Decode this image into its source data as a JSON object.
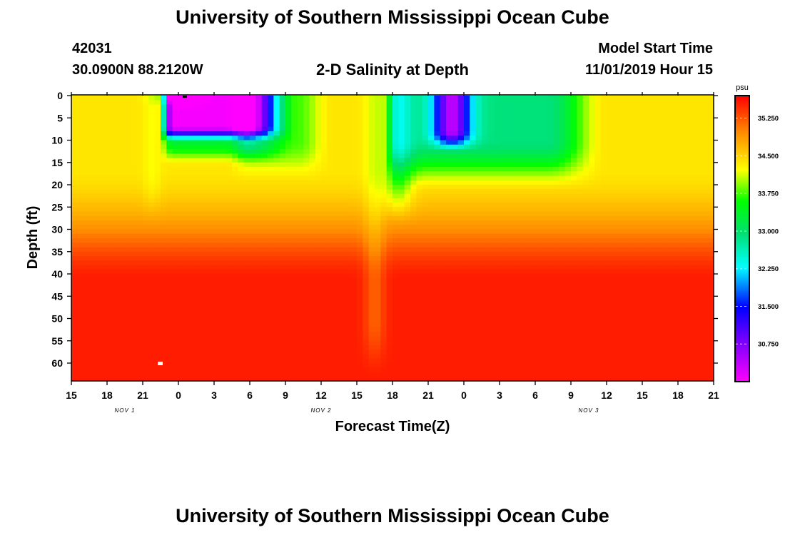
{
  "header": {
    "title": "University of Southern Mississippi Ocean Cube",
    "station_id": "42031",
    "coords": "30.0900N 88.2120W",
    "subtitle": "2-D Salinity at Depth",
    "model_start_label": "Model Start Time",
    "model_start_value": "11/01/2019 Hour 15"
  },
  "footer": {
    "title": "University of Southern Mississippi Ocean Cube"
  },
  "chart_data": {
    "type": "heatmap",
    "title": "2-D Salinity at Depth",
    "xlabel": "Forecast Time(Z)",
    "ylabel": "Depth (ft)",
    "x_tick_labels": [
      "15",
      "18",
      "21",
      "0",
      "3",
      "6",
      "9",
      "12",
      "15",
      "18",
      "21",
      "0",
      "3",
      "6",
      "9",
      "12",
      "15",
      "18",
      "21"
    ],
    "x_range_hours": [
      0,
      54
    ],
    "date_labels": [
      {
        "label": "NOV 1",
        "hour": 4.5
      },
      {
        "label": "NOV 2",
        "hour": 21
      },
      {
        "label": "NOV 3",
        "hour": 43.5
      }
    ],
    "y_ticks": [
      0,
      5,
      10,
      15,
      20,
      25,
      30,
      35,
      40,
      45,
      50,
      55,
      60
    ],
    "ylim": [
      0,
      64
    ],
    "colorbar": {
      "unit": "psu",
      "range": [
        30.0,
        35.7
      ],
      "tick_labels": [
        "35.250",
        "34.500",
        "33.750",
        "33.000",
        "32.250",
        "31.500",
        "30.750"
      ],
      "tick_values": [
        35.25,
        34.5,
        33.75,
        33.0,
        32.25,
        31.5,
        30.75
      ]
    },
    "features": [
      {
        "desc": "low-salinity lens near surface",
        "hour_start": 8,
        "hour_end": 15,
        "depth_top": 0,
        "depth_bottom": 9,
        "min_value": 30.5
      },
      {
        "desc": "low-salinity lens near surface",
        "hour_start": 33,
        "hour_end": 36,
        "depth_top": 0,
        "depth_bottom": 12,
        "min_value": 31.4
      },
      {
        "desc": "deep high-salinity layer",
        "depth_top": 38,
        "depth_bottom": 64,
        "value": 35.3
      }
    ]
  }
}
